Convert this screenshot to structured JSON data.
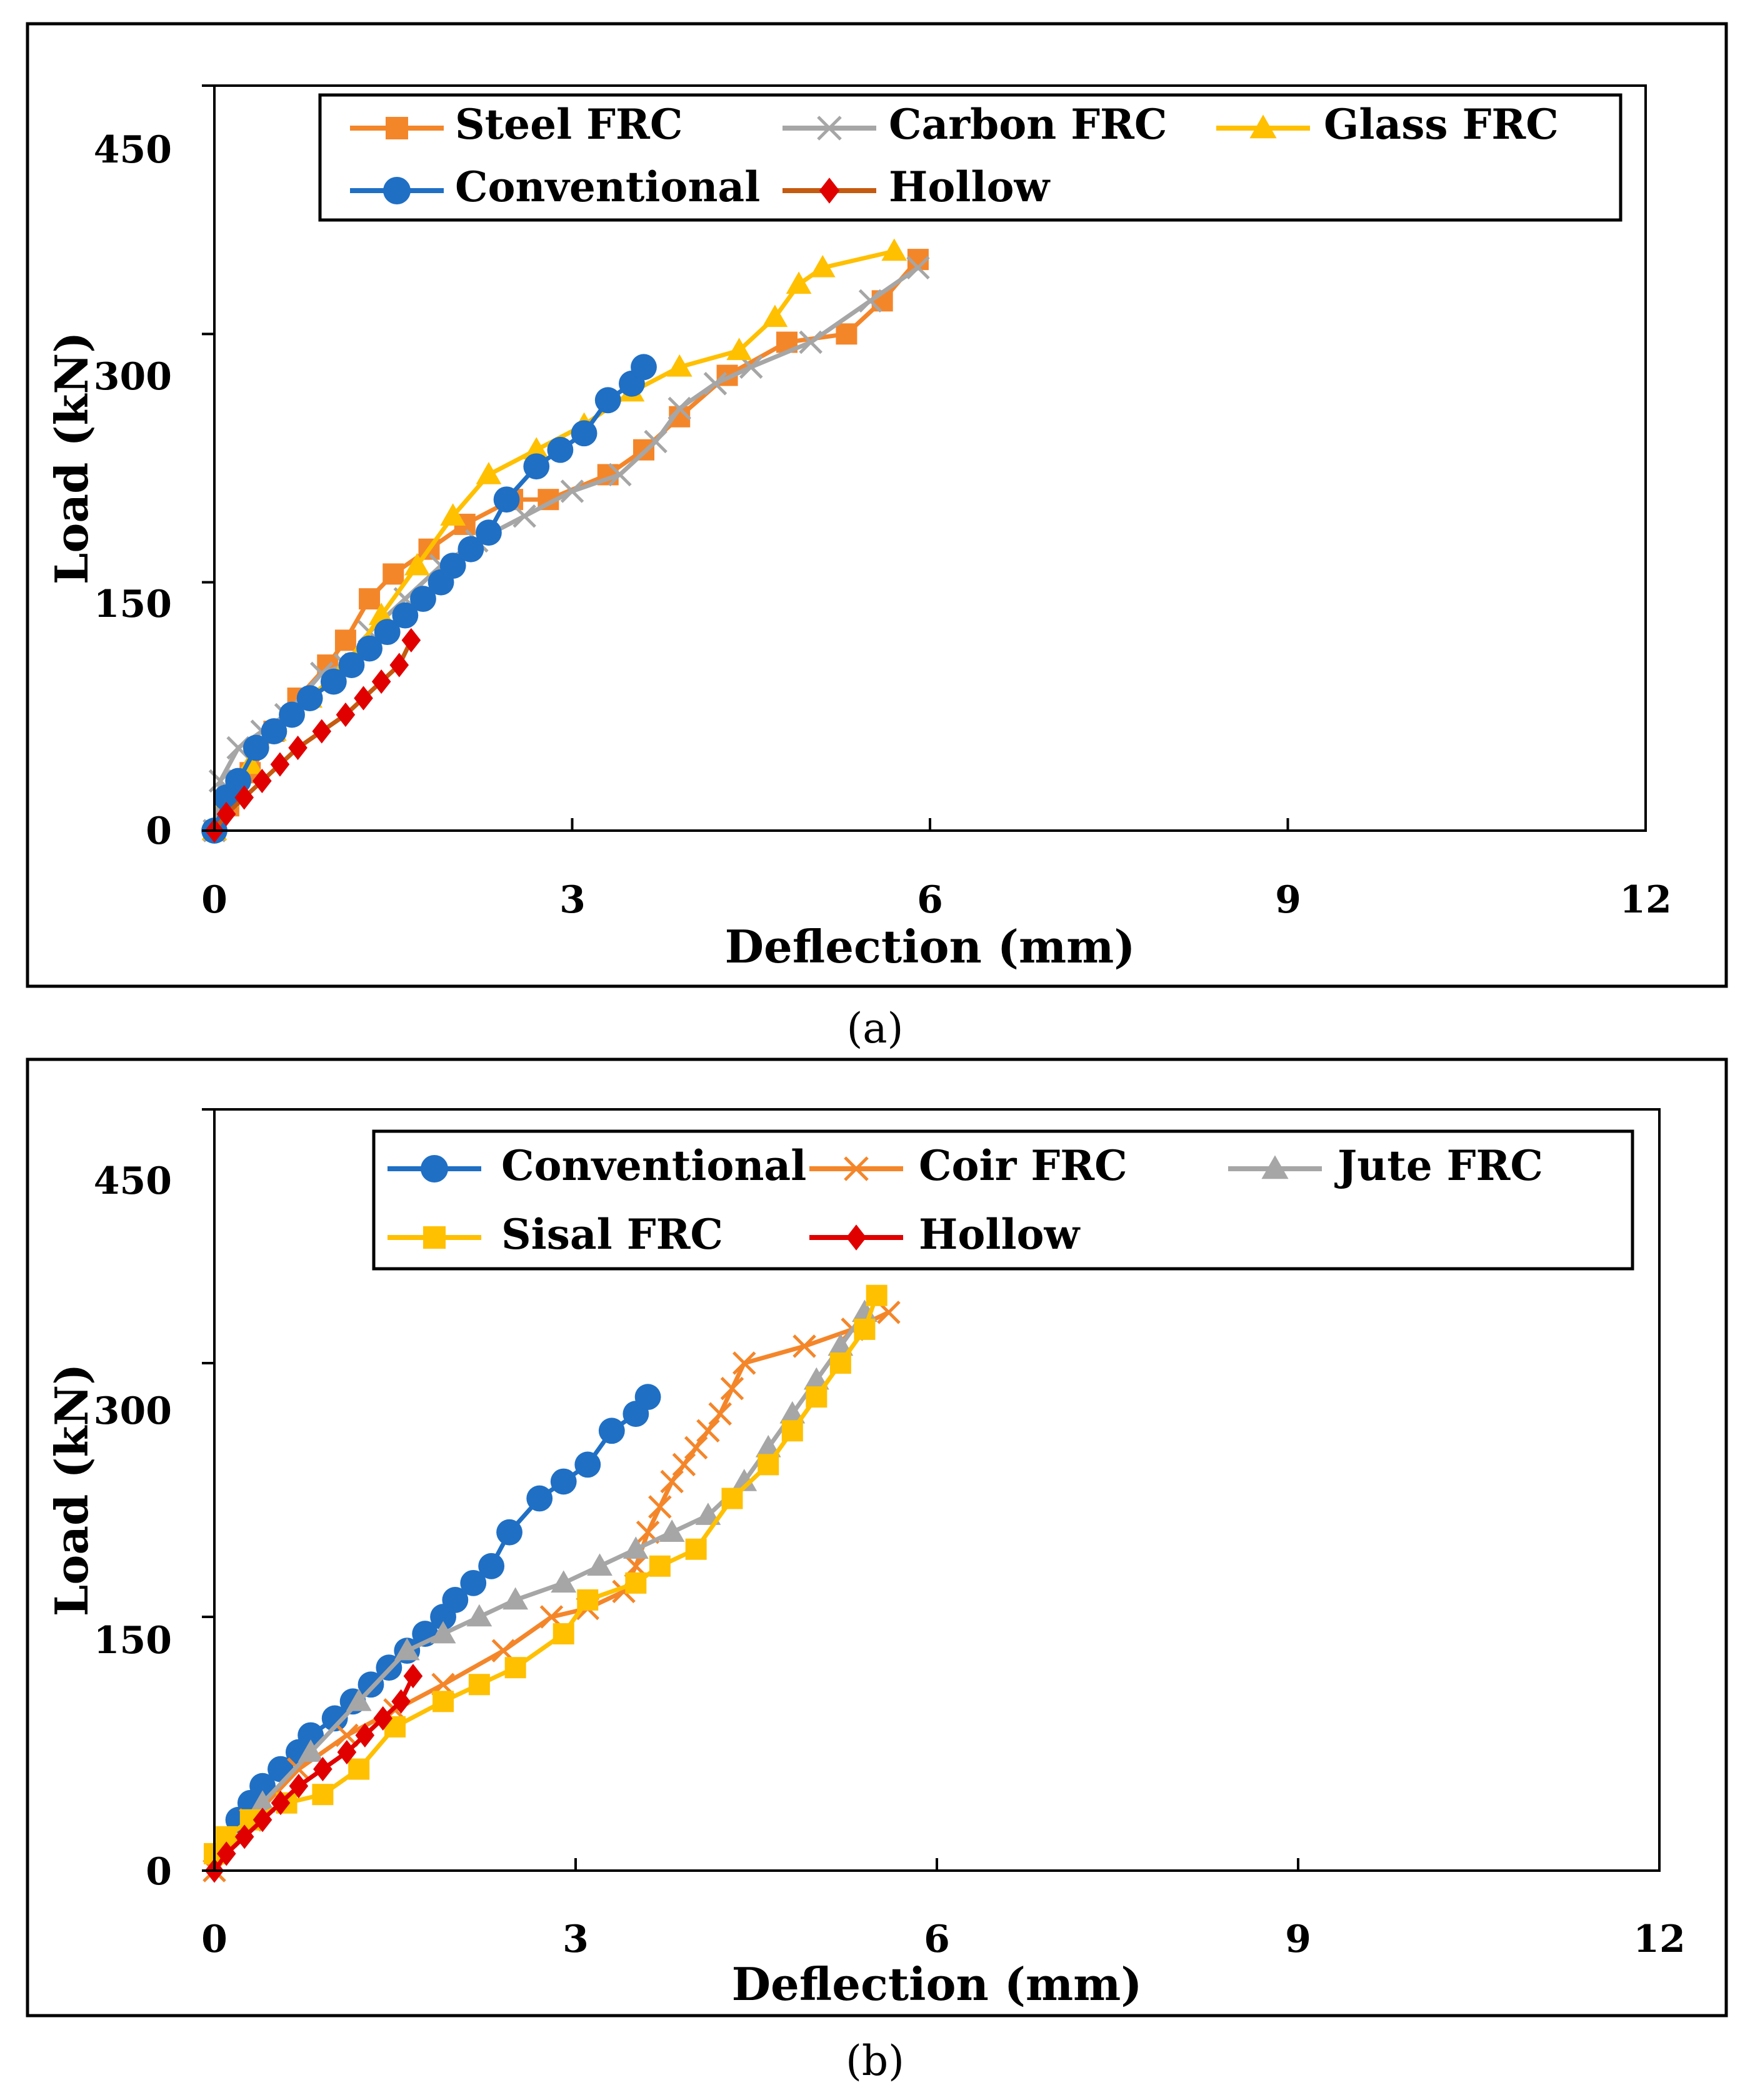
{
  "chart_data": [
    {
      "type": "line",
      "panel_label": "a",
      "xlabel": "Deflection (mm)",
      "ylabel": "Load (kN)",
      "xlim": [
        0,
        12
      ],
      "ylim": [
        0,
        450
      ],
      "xticks": [
        "0",
        "3",
        "6",
        "9",
        "12"
      ],
      "yticks": [
        "0",
        "150",
        "300",
        "450"
      ],
      "grid": false,
      "legend_position": "top",
      "series": [
        {
          "name": "Steel FRC",
          "color": "#F4862A",
          "marker": "square",
          "x": [
            0,
            0.12,
            0.3,
            0.5,
            0.7,
            0.95,
            1.1,
            1.3,
            1.5,
            1.8,
            2.1,
            2.5,
            2.8,
            3.3,
            3.6,
            3.9,
            4.3,
            4.8,
            5.3,
            5.6,
            5.9
          ],
          "y": [
            0,
            15,
            35,
            60,
            80,
            100,
            115,
            140,
            155,
            170,
            185,
            200,
            200,
            215,
            230,
            250,
            275,
            295,
            300,
            320,
            345
          ]
        },
        {
          "name": "Carbon FRC",
          "color": "#A6A6A6",
          "marker": "x",
          "x": [
            0,
            0.05,
            0.2,
            0.4,
            0.6,
            0.9,
            1.1,
            1.3,
            1.6,
            1.9,
            2.2,
            2.6,
            3.0,
            3.4,
            3.7,
            3.9,
            4.2,
            4.5,
            5.0,
            5.5,
            5.9
          ],
          "y": [
            0,
            30,
            50,
            60,
            70,
            95,
            100,
            120,
            140,
            160,
            175,
            190,
            205,
            215,
            235,
            255,
            270,
            280,
            295,
            320,
            340
          ]
        },
        {
          "name": "Glass FRC",
          "color": "#FFC000",
          "marker": "triangle",
          "x": [
            0,
            0.1,
            0.3,
            0.5,
            0.8,
            1.1,
            1.4,
            1.7,
            2.0,
            2.3,
            2.7,
            3.1,
            3.5,
            3.9,
            4.4,
            4.7,
            4.9,
            5.1,
            5.7
          ],
          "y": [
            0,
            20,
            40,
            60,
            80,
            100,
            130,
            160,
            190,
            215,
            230,
            245,
            265,
            280,
            290,
            310,
            330,
            340,
            350
          ]
        },
        {
          "name": "Conventional",
          "color": "#1F6FC5",
          "marker": "circle",
          "x": [
            0,
            0.1,
            0.2,
            0.35,
            0.5,
            0.65,
            0.8,
            1.0,
            1.15,
            1.3,
            1.45,
            1.6,
            1.75,
            1.9,
            2.0,
            2.15,
            2.3,
            2.45,
            2.7,
            2.9,
            3.1,
            3.3,
            3.5,
            3.6
          ],
          "y": [
            0,
            20,
            30,
            50,
            60,
            70,
            80,
            90,
            100,
            110,
            120,
            130,
            140,
            150,
            160,
            170,
            180,
            200,
            220,
            230,
            240,
            260,
            270,
            280
          ]
        },
        {
          "name": "Hollow",
          "color": "#E00000",
          "line_color": "#C55A11",
          "marker": "diamond",
          "x": [
            0,
            0.1,
            0.25,
            0.4,
            0.55,
            0.7,
            0.9,
            1.1,
            1.25,
            1.4,
            1.55,
            1.65
          ],
          "y": [
            0,
            10,
            20,
            30,
            40,
            50,
            60,
            70,
            80,
            90,
            100,
            115
          ]
        }
      ]
    },
    {
      "type": "line",
      "panel_label": "b",
      "xlabel": "Deflection (mm)",
      "ylabel": "Load (kN)",
      "xlim": [
        0,
        12
      ],
      "ylim": [
        0,
        450
      ],
      "xticks": [
        "0",
        "3",
        "6",
        "9",
        "12"
      ],
      "yticks": [
        "0",
        "150",
        "300",
        "450"
      ],
      "grid": false,
      "legend_position": "top",
      "series": [
        {
          "name": "Conventional",
          "color": "#1F6FC5",
          "marker": "circle",
          "x": [
            0.2,
            0.3,
            0.4,
            0.55,
            0.7,
            0.8,
            1.0,
            1.15,
            1.3,
            1.45,
            1.6,
            1.75,
            1.9,
            2.0,
            2.15,
            2.3,
            2.45,
            2.7,
            2.9,
            3.1,
            3.3,
            3.5,
            3.6
          ],
          "y": [
            30,
            40,
            50,
            60,
            70,
            80,
            90,
            100,
            110,
            120,
            130,
            140,
            150,
            160,
            170,
            180,
            200,
            220,
            230,
            240,
            260,
            270,
            280
          ]
        },
        {
          "name": "Coir FRC",
          "color": "#F4862A",
          "marker": "x",
          "x": [
            0,
            0.3,
            0.7,
            1.1,
            1.5,
            1.9,
            2.4,
            2.8,
            3.1,
            3.4,
            3.5,
            3.6,
            3.7,
            3.8,
            3.9,
            4.0,
            4.1,
            4.2,
            4.3,
            4.4,
            4.9,
            5.3,
            5.6
          ],
          "y": [
            0,
            30,
            60,
            80,
            95,
            110,
            130,
            150,
            155,
            165,
            180,
            200,
            215,
            230,
            240,
            250,
            260,
            270,
            285,
            300,
            310,
            320,
            330
          ]
        },
        {
          "name": "Jute FRC",
          "color": "#A6A6A6",
          "marker": "triangle",
          "x": [
            0.4,
            0.8,
            1.2,
            1.6,
            1.9,
            2.2,
            2.5,
            2.9,
            3.2,
            3.5,
            3.8,
            4.1,
            4.4,
            4.6,
            4.8,
            5.0,
            5.2,
            5.4
          ],
          "y": [
            40,
            70,
            100,
            130,
            140,
            150,
            160,
            170,
            180,
            190,
            200,
            210,
            230,
            250,
            270,
            290,
            310,
            330
          ]
        },
        {
          "name": "Sisal FRC",
          "color": "#FFC000",
          "marker": "square",
          "x": [
            0,
            0.1,
            0.3,
            0.6,
            0.9,
            1.2,
            1.5,
            1.9,
            2.2,
            2.5,
            2.9,
            3.1,
            3.5,
            3.7,
            4.0,
            4.3,
            4.6,
            4.8,
            5.0,
            5.2,
            5.4,
            5.5
          ],
          "y": [
            10,
            20,
            30,
            40,
            45,
            60,
            85,
            100,
            110,
            120,
            140,
            160,
            170,
            180,
            190,
            220,
            240,
            260,
            280,
            300,
            320,
            340
          ]
        },
        {
          "name": "Hollow",
          "color": "#E00000",
          "line_color": "#E00000",
          "marker": "diamond",
          "x": [
            0,
            0.1,
            0.25,
            0.4,
            0.55,
            0.7,
            0.9,
            1.1,
            1.25,
            1.4,
            1.55,
            1.65
          ],
          "y": [
            0,
            10,
            20,
            30,
            40,
            50,
            60,
            70,
            80,
            90,
            100,
            115
          ]
        }
      ]
    }
  ],
  "captions": {
    "a": "(a)",
    "b": "(b)"
  }
}
